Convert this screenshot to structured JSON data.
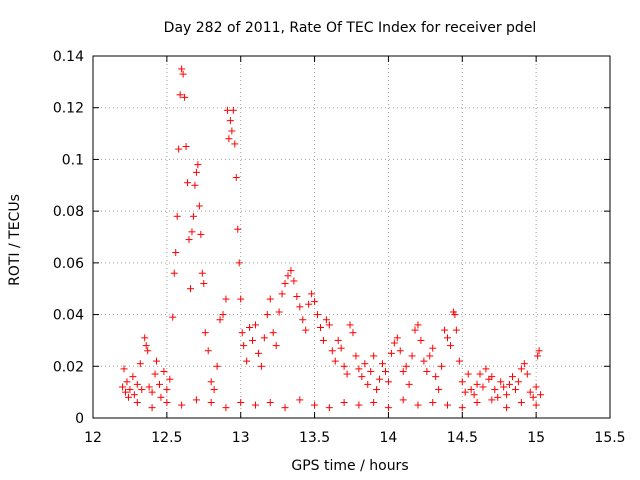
{
  "chart_data": {
    "type": "scatter",
    "title": "Day 282 of 2011, Rate Of TEC Index for receiver pdel",
    "xlabel": "GPS time / hours",
    "ylabel": "ROTI / TECUs",
    "xlim": [
      12,
      15.5
    ],
    "ylim": [
      0,
      0.14
    ],
    "xticks": [
      "12",
      "12.5",
      "13",
      "13.5",
      "14",
      "14.5",
      "15",
      "15.5"
    ],
    "yticks": [
      "0",
      "0.02",
      "0.04",
      "0.06",
      "0.08",
      "0.1",
      "0.12",
      "0.14"
    ],
    "grid": true,
    "marker": "plus",
    "color": "#ff0000",
    "series": [
      {
        "points": [
          [
            12.2,
            0.012
          ],
          [
            12.21,
            0.019
          ],
          [
            12.22,
            0.01
          ],
          [
            12.23,
            0.014
          ],
          [
            12.24,
            0.008
          ],
          [
            12.25,
            0.011
          ],
          [
            12.27,
            0.016
          ],
          [
            12.28,
            0.009
          ],
          [
            12.3,
            0.013
          ],
          [
            12.32,
            0.021
          ],
          [
            12.33,
            0.011
          ],
          [
            12.35,
            0.031
          ],
          [
            12.36,
            0.028
          ],
          [
            12.37,
            0.026
          ],
          [
            12.38,
            0.012
          ],
          [
            12.4,
            0.01
          ],
          [
            12.42,
            0.017
          ],
          [
            12.43,
            0.022
          ],
          [
            12.45,
            0.013
          ],
          [
            12.46,
            0.008
          ],
          [
            12.48,
            0.018
          ],
          [
            12.5,
            0.011
          ],
          [
            12.52,
            0.015
          ],
          [
            12.54,
            0.039
          ],
          [
            12.55,
            0.056
          ],
          [
            12.56,
            0.064
          ],
          [
            12.57,
            0.078
          ],
          [
            12.58,
            0.104
          ],
          [
            12.59,
            0.125
          ],
          [
            12.6,
            0.135
          ],
          [
            12.61,
            0.133
          ],
          [
            12.62,
            0.124
          ],
          [
            12.63,
            0.105
          ],
          [
            12.64,
            0.091
          ],
          [
            12.65,
            0.069
          ],
          [
            12.66,
            0.05
          ],
          [
            12.67,
            0.072
          ],
          [
            12.68,
            0.078
          ],
          [
            12.69,
            0.09
          ],
          [
            12.7,
            0.095
          ],
          [
            12.71,
            0.098
          ],
          [
            12.72,
            0.082
          ],
          [
            12.73,
            0.071
          ],
          [
            12.74,
            0.056
          ],
          [
            12.75,
            0.052
          ],
          [
            12.76,
            0.033
          ],
          [
            12.78,
            0.026
          ],
          [
            12.8,
            0.014
          ],
          [
            12.82,
            0.011
          ],
          [
            12.84,
            0.02
          ],
          [
            12.86,
            0.038
          ],
          [
            12.88,
            0.04
          ],
          [
            12.9,
            0.046
          ],
          [
            12.91,
            0.119
          ],
          [
            12.92,
            0.108
          ],
          [
            12.93,
            0.115
          ],
          [
            12.94,
            0.111
          ],
          [
            12.95,
            0.119
          ],
          [
            12.96,
            0.106
          ],
          [
            12.97,
            0.093
          ],
          [
            12.98,
            0.073
          ],
          [
            12.99,
            0.06
          ],
          [
            13.0,
            0.046
          ],
          [
            13.01,
            0.033
          ],
          [
            13.02,
            0.028
          ],
          [
            13.04,
            0.022
          ],
          [
            13.06,
            0.035
          ],
          [
            13.08,
            0.03
          ],
          [
            13.1,
            0.036
          ],
          [
            13.12,
            0.025
          ],
          [
            13.14,
            0.02
          ],
          [
            13.16,
            0.031
          ],
          [
            13.18,
            0.04
          ],
          [
            13.2,
            0.046
          ],
          [
            13.22,
            0.033
          ],
          [
            13.24,
            0.028
          ],
          [
            13.26,
            0.041
          ],
          [
            13.28,
            0.048
          ],
          [
            13.3,
            0.052
          ],
          [
            13.32,
            0.055
          ],
          [
            13.34,
            0.057
          ],
          [
            13.36,
            0.053
          ],
          [
            13.38,
            0.047
          ],
          [
            13.4,
            0.043
          ],
          [
            13.42,
            0.038
          ],
          [
            13.44,
            0.034
          ],
          [
            13.46,
            0.044
          ],
          [
            13.48,
            0.048
          ],
          [
            13.5,
            0.045
          ],
          [
            13.52,
            0.04
          ],
          [
            13.54,
            0.035
          ],
          [
            13.56,
            0.03
          ],
          [
            13.58,
            0.038
          ],
          [
            13.6,
            0.036
          ],
          [
            13.62,
            0.026
          ],
          [
            13.64,
            0.022
          ],
          [
            13.66,
            0.03
          ],
          [
            13.68,
            0.027
          ],
          [
            13.7,
            0.02
          ],
          [
            13.72,
            0.017
          ],
          [
            13.74,
            0.036
          ],
          [
            13.76,
            0.033
          ],
          [
            13.78,
            0.024
          ],
          [
            13.8,
            0.019
          ],
          [
            13.82,
            0.016
          ],
          [
            13.84,
            0.021
          ],
          [
            13.86,
            0.013
          ],
          [
            13.88,
            0.018
          ],
          [
            13.9,
            0.024
          ],
          [
            13.92,
            0.011
          ],
          [
            13.94,
            0.015
          ],
          [
            13.96,
            0.021
          ],
          [
            13.98,
            0.018
          ],
          [
            14.0,
            0.014
          ],
          [
            14.02,
            0.025
          ],
          [
            14.04,
            0.029
          ],
          [
            14.06,
            0.031
          ],
          [
            14.08,
            0.026
          ],
          [
            14.1,
            0.018
          ],
          [
            14.12,
            0.02
          ],
          [
            14.14,
            0.013
          ],
          [
            14.16,
            0.024
          ],
          [
            14.18,
            0.034
          ],
          [
            14.2,
            0.036
          ],
          [
            14.22,
            0.03
          ],
          [
            14.24,
            0.022
          ],
          [
            14.26,
            0.018
          ],
          [
            14.28,
            0.024
          ],
          [
            14.3,
            0.027
          ],
          [
            14.32,
            0.016
          ],
          [
            14.34,
            0.011
          ],
          [
            14.36,
            0.02
          ],
          [
            14.38,
            0.034
          ],
          [
            14.4,
            0.031
          ],
          [
            14.42,
            0.028
          ],
          [
            14.44,
            0.041
          ],
          [
            14.45,
            0.04
          ],
          [
            14.46,
            0.034
          ],
          [
            14.48,
            0.022
          ],
          [
            14.5,
            0.014
          ],
          [
            14.52,
            0.01
          ],
          [
            14.54,
            0.017
          ],
          [
            14.56,
            0.011
          ],
          [
            14.58,
            0.009
          ],
          [
            14.6,
            0.013
          ],
          [
            14.62,
            0.017
          ],
          [
            14.64,
            0.012
          ],
          [
            14.66,
            0.019
          ],
          [
            14.68,
            0.015
          ],
          [
            14.7,
            0.016
          ],
          [
            14.72,
            0.011
          ],
          [
            14.74,
            0.008
          ],
          [
            14.76,
            0.014
          ],
          [
            14.78,
            0.012
          ],
          [
            14.8,
            0.009
          ],
          [
            14.82,
            0.013
          ],
          [
            14.84,
            0.016
          ],
          [
            14.86,
            0.011
          ],
          [
            14.88,
            0.014
          ],
          [
            14.9,
            0.019
          ],
          [
            14.92,
            0.021
          ],
          [
            14.94,
            0.017
          ],
          [
            14.96,
            0.01
          ],
          [
            14.98,
            0.008
          ],
          [
            15.0,
            0.012
          ],
          [
            15.01,
            0.024
          ],
          [
            15.02,
            0.026
          ],
          [
            15.03,
            0.009
          ],
          [
            12.3,
            0.006
          ],
          [
            12.4,
            0.004
          ],
          [
            12.5,
            0.006
          ],
          [
            12.6,
            0.005
          ],
          [
            12.7,
            0.007
          ],
          [
            12.8,
            0.006
          ],
          [
            12.9,
            0.004
          ],
          [
            13.0,
            0.006
          ],
          [
            13.1,
            0.005
          ],
          [
            13.2,
            0.006
          ],
          [
            13.3,
            0.004
          ],
          [
            13.4,
            0.007
          ],
          [
            13.5,
            0.005
          ],
          [
            13.6,
            0.004
          ],
          [
            13.7,
            0.006
          ],
          [
            13.8,
            0.005
          ],
          [
            13.9,
            0.006
          ],
          [
            14.0,
            0.004
          ],
          [
            14.1,
            0.007
          ],
          [
            14.2,
            0.005
          ],
          [
            14.3,
            0.006
          ],
          [
            14.4,
            0.005
          ],
          [
            14.5,
            0.004
          ],
          [
            14.6,
            0.006
          ],
          [
            14.7,
            0.007
          ],
          [
            14.8,
            0.004
          ],
          [
            14.9,
            0.006
          ],
          [
            15.0,
            0.005
          ]
        ]
      }
    ]
  }
}
